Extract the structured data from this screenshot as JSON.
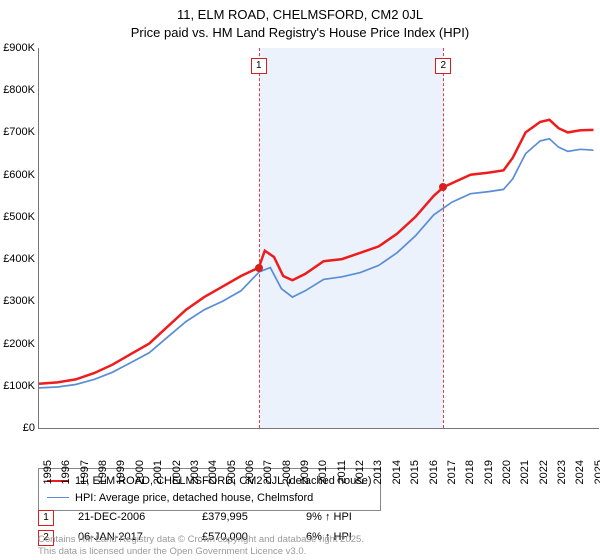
{
  "title_line1": "11, ELM ROAD, CHELMSFORD, CM2 0JL",
  "title_line2": "Price paid vs. HM Land Registry's House Price Index (HPI)",
  "chart": {
    "type": "line",
    "background_color": "#ffffff",
    "shade_color": "#dce8f7",
    "marker_line_color": "#e04040",
    "dot_color": "#d62020",
    "x_years": [
      "1995",
      "1996",
      "1997",
      "1998",
      "1999",
      "2000",
      "2001",
      "2002",
      "2003",
      "2004",
      "2005",
      "2006",
      "2007",
      "2008",
      "2009",
      "2010",
      "2011",
      "2012",
      "2013",
      "2014",
      "2015",
      "2016",
      "2017",
      "2018",
      "2019",
      "2020",
      "2021",
      "2022",
      "2023",
      "2024",
      "2025"
    ],
    "y_ticks": [
      "£0",
      "£100K",
      "£200K",
      "£300K",
      "£400K",
      "£500K",
      "£600K",
      "£700K",
      "£800K",
      "£900K"
    ],
    "ylim": [
      0,
      900
    ],
    "xlim": [
      1995,
      2025.5
    ],
    "tick_fontsize": 11,
    "series": [
      {
        "key": "price_paid",
        "label": "11, ELM ROAD, CHELMSFORD, CM2 0JL (detached house)",
        "color": "#ee1c1c",
        "width": 2.5,
        "data": [
          [
            1995,
            105
          ],
          [
            1996,
            108
          ],
          [
            1997,
            115
          ],
          [
            1998,
            130
          ],
          [
            1999,
            150
          ],
          [
            2000,
            175
          ],
          [
            2001,
            200
          ],
          [
            2002,
            240
          ],
          [
            2003,
            280
          ],
          [
            2004,
            310
          ],
          [
            2005,
            335
          ],
          [
            2006,
            360
          ],
          [
            2006.97,
            380
          ],
          [
            2007.3,
            420
          ],
          [
            2007.8,
            405
          ],
          [
            2008.3,
            360
          ],
          [
            2008.8,
            350
          ],
          [
            2009.5,
            365
          ],
          [
            2010.5,
            395
          ],
          [
            2011.5,
            400
          ],
          [
            2012.5,
            415
          ],
          [
            2013.5,
            430
          ],
          [
            2014.5,
            460
          ],
          [
            2015.5,
            500
          ],
          [
            2016.5,
            550
          ],
          [
            2017.02,
            570
          ],
          [
            2017.5,
            580
          ],
          [
            2018.5,
            600
          ],
          [
            2019.5,
            605
          ],
          [
            2020.3,
            610
          ],
          [
            2020.8,
            640
          ],
          [
            2021.5,
            700
          ],
          [
            2022.3,
            725
          ],
          [
            2022.8,
            730
          ],
          [
            2023.3,
            710
          ],
          [
            2023.8,
            700
          ],
          [
            2024.5,
            705
          ],
          [
            2025.2,
            706
          ]
        ]
      },
      {
        "key": "hpi",
        "label": "HPI: Average price, detached house, Chelmsford",
        "color": "#5a8dd6",
        "width": 1.7,
        "data": [
          [
            1995,
            95
          ],
          [
            1996,
            97
          ],
          [
            1997,
            103
          ],
          [
            1998,
            115
          ],
          [
            1999,
            132
          ],
          [
            2000,
            155
          ],
          [
            2001,
            178
          ],
          [
            2002,
            215
          ],
          [
            2003,
            252
          ],
          [
            2004,
            280
          ],
          [
            2005,
            300
          ],
          [
            2006,
            325
          ],
          [
            2007,
            370
          ],
          [
            2007.6,
            380
          ],
          [
            2008.2,
            330
          ],
          [
            2008.8,
            310
          ],
          [
            2009.5,
            325
          ],
          [
            2010.5,
            352
          ],
          [
            2011.5,
            358
          ],
          [
            2012.5,
            368
          ],
          [
            2013.5,
            385
          ],
          [
            2014.5,
            415
          ],
          [
            2015.5,
            455
          ],
          [
            2016.5,
            505
          ],
          [
            2017.5,
            535
          ],
          [
            2018.5,
            555
          ],
          [
            2019.5,
            560
          ],
          [
            2020.3,
            565
          ],
          [
            2020.8,
            590
          ],
          [
            2021.5,
            650
          ],
          [
            2022.3,
            680
          ],
          [
            2022.8,
            685
          ],
          [
            2023.3,
            665
          ],
          [
            2023.8,
            655
          ],
          [
            2024.5,
            660
          ],
          [
            2025.2,
            658
          ]
        ]
      }
    ],
    "markers": [
      {
        "n": "1",
        "x": 2006.97,
        "y": 380
      },
      {
        "n": "2",
        "x": 2017.02,
        "y": 570
      }
    ]
  },
  "legend": {
    "items": [
      {
        "color": "#ee1c1c",
        "width": 2.5,
        "label": "11, ELM ROAD, CHELMSFORD, CM2 0JL (detached house)"
      },
      {
        "color": "#5a8dd6",
        "width": 1.7,
        "label": "HPI: Average price, detached house, Chelmsford"
      }
    ]
  },
  "events": [
    {
      "n": "1",
      "date": "21-DEC-2006",
      "price": "£379,995",
      "delta": "9% ↑ HPI"
    },
    {
      "n": "2",
      "date": "06-JAN-2017",
      "price": "£570,000",
      "delta": "6% ↑ HPI"
    }
  ],
  "footer_line1": "Contains HM Land Registry data © Crown copyright and database right 2025.",
  "footer_line2": "This data is licensed under the Open Government Licence v3.0."
}
